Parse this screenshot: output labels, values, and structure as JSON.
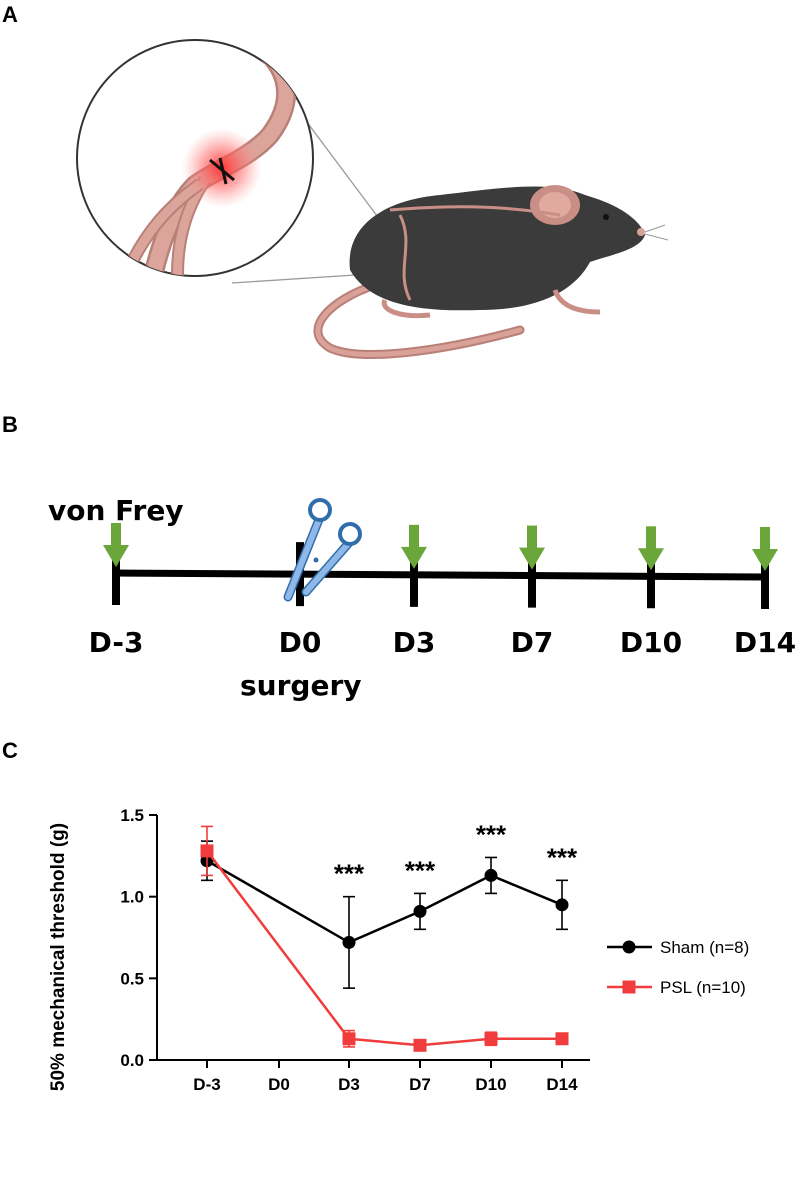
{
  "panels": {
    "a": "A",
    "b": "B",
    "c": "C"
  },
  "timeline": {
    "title": "von Frey",
    "days": [
      "D-3",
      "D0",
      "D3",
      "D7",
      "D10",
      "D14"
    ],
    "surgery_label": "surgery",
    "arrow_color": "#6aa63a",
    "scissors_color": "#8fb8e8"
  },
  "illustration": {
    "nerve_color": "#c98f86",
    "mouse_color": "#3b3b3b",
    "injury_color": "#ff4a4a"
  },
  "chart_data": {
    "type": "line",
    "ylabel": "50% mechanical threshold (g)",
    "xlabel": "",
    "categories": [
      "D-3",
      "D0",
      "D3",
      "D7",
      "D10",
      "D14"
    ],
    "ylim": [
      0.0,
      1.5
    ],
    "yticks": [
      "0.0",
      "0.5",
      "1.0",
      "1.5"
    ],
    "series": [
      {
        "name": "Sham (n=8)",
        "color": "#000000",
        "marker": "circle",
        "x": [
          "D-3",
          "D3",
          "D7",
          "D10",
          "D14"
        ],
        "values": [
          1.22,
          0.72,
          0.91,
          1.13,
          0.95
        ],
        "errors": [
          0.12,
          0.28,
          0.11,
          0.11,
          0.15
        ]
      },
      {
        "name": "PSL (n=10)",
        "color": "#f03c3c",
        "marker": "square",
        "x": [
          "D-3",
          "D3",
          "D7",
          "D10",
          "D14"
        ],
        "values": [
          1.28,
          0.13,
          0.09,
          0.13,
          0.13
        ],
        "errors": [
          0.15,
          0.05,
          0.02,
          0.04,
          0.03
        ]
      }
    ],
    "annotations": [
      {
        "x": "D3",
        "text": "***"
      },
      {
        "x": "D7",
        "text": "***"
      },
      {
        "x": "D10",
        "text": "***"
      },
      {
        "x": "D14",
        "text": "***"
      }
    ],
    "legend_position": "right"
  }
}
